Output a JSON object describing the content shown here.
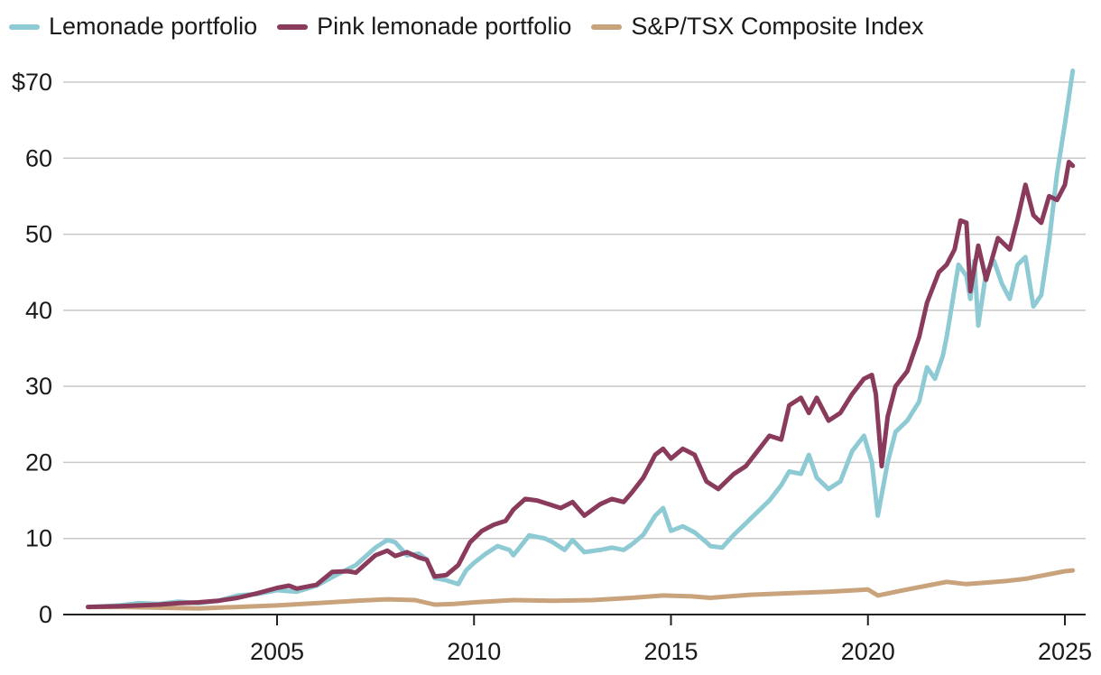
{
  "chart_data": {
    "type": "line",
    "title": "",
    "xlabel": "",
    "ylabel": "",
    "x_ticks": [
      "2005",
      "2010",
      "2015",
      "2020",
      "2025"
    ],
    "x_tick_values": [
      2005,
      2010,
      2015,
      2020,
      2025
    ],
    "y_ticks": [
      "0",
      "10",
      "20",
      "30",
      "40",
      "50",
      "60",
      "$70"
    ],
    "y_tick_values": [
      0,
      10,
      20,
      30,
      40,
      50,
      60,
      70
    ],
    "xlim": [
      2000,
      2025.6
    ],
    "ylim": [
      0,
      72
    ],
    "grid": true,
    "legend_position": "top-left",
    "series": [
      {
        "name": "Lemonade portfolio",
        "color": "#8ecad3",
        "points": [
          [
            2000.2,
            1.0
          ],
          [
            2001.0,
            1.2
          ],
          [
            2001.5,
            1.5
          ],
          [
            2002.0,
            1.4
          ],
          [
            2002.5,
            1.7
          ],
          [
            2003.0,
            1.5
          ],
          [
            2003.5,
            1.8
          ],
          [
            2004.0,
            2.5
          ],
          [
            2004.5,
            2.7
          ],
          [
            2005.0,
            3.2
          ],
          [
            2005.5,
            3.0
          ],
          [
            2006.0,
            3.8
          ],
          [
            2006.5,
            5.2
          ],
          [
            2007.0,
            6.5
          ],
          [
            2007.5,
            8.8
          ],
          [
            2007.8,
            9.8
          ],
          [
            2008.0,
            9.5
          ],
          [
            2008.3,
            7.8
          ],
          [
            2008.6,
            8.0
          ],
          [
            2008.8,
            7.2
          ],
          [
            2009.0,
            4.8
          ],
          [
            2009.3,
            4.5
          ],
          [
            2009.6,
            4.0
          ],
          [
            2009.8,
            5.8
          ],
          [
            2010.0,
            6.8
          ],
          [
            2010.3,
            8.0
          ],
          [
            2010.6,
            9.0
          ],
          [
            2010.9,
            8.5
          ],
          [
            2011.0,
            7.8
          ],
          [
            2011.4,
            10.4
          ],
          [
            2011.8,
            10.0
          ],
          [
            2012.0,
            9.5
          ],
          [
            2012.3,
            8.5
          ],
          [
            2012.5,
            9.8
          ],
          [
            2012.8,
            8.2
          ],
          [
            2013.2,
            8.5
          ],
          [
            2013.5,
            8.8
          ],
          [
            2013.8,
            8.5
          ],
          [
            2014.0,
            9.2
          ],
          [
            2014.3,
            10.5
          ],
          [
            2014.6,
            13.0
          ],
          [
            2014.8,
            14.0
          ],
          [
            2015.0,
            11.0
          ],
          [
            2015.3,
            11.6
          ],
          [
            2015.6,
            10.8
          ],
          [
            2015.9,
            9.5
          ],
          [
            2016.0,
            9.0
          ],
          [
            2016.3,
            8.8
          ],
          [
            2016.6,
            10.5
          ],
          [
            2016.9,
            12.0
          ],
          [
            2017.2,
            13.5
          ],
          [
            2017.5,
            15.0
          ],
          [
            2017.8,
            17.0
          ],
          [
            2018.0,
            18.8
          ],
          [
            2018.3,
            18.5
          ],
          [
            2018.5,
            21.0
          ],
          [
            2018.7,
            18.0
          ],
          [
            2019.0,
            16.5
          ],
          [
            2019.3,
            17.5
          ],
          [
            2019.6,
            21.5
          ],
          [
            2019.9,
            23.5
          ],
          [
            2020.1,
            20.0
          ],
          [
            2020.25,
            13.0
          ],
          [
            2020.5,
            20.0
          ],
          [
            2020.7,
            24.0
          ],
          [
            2021.0,
            25.5
          ],
          [
            2021.3,
            28.0
          ],
          [
            2021.5,
            32.5
          ],
          [
            2021.7,
            31.0
          ],
          [
            2021.9,
            34.0
          ],
          [
            2022.0,
            36.5
          ],
          [
            2022.3,
            46.0
          ],
          [
            2022.5,
            44.5
          ],
          [
            2022.6,
            41.5
          ],
          [
            2022.7,
            46.5
          ],
          [
            2022.8,
            38.0
          ],
          [
            2023.0,
            45.0
          ],
          [
            2023.2,
            46.5
          ],
          [
            2023.4,
            43.5
          ],
          [
            2023.6,
            41.5
          ],
          [
            2023.8,
            46.0
          ],
          [
            2024.0,
            47.0
          ],
          [
            2024.2,
            40.5
          ],
          [
            2024.4,
            42.0
          ],
          [
            2024.6,
            49.0
          ],
          [
            2024.8,
            58.0
          ],
          [
            2025.0,
            64.5
          ],
          [
            2025.1,
            68.0
          ],
          [
            2025.2,
            71.5
          ]
        ]
      },
      {
        "name": "Pink lemonade portfolio",
        "color": "#8a3b5c",
        "points": [
          [
            2000.2,
            1.0
          ],
          [
            2001.0,
            1.1
          ],
          [
            2001.5,
            1.2
          ],
          [
            2002.0,
            1.3
          ],
          [
            2002.5,
            1.5
          ],
          [
            2003.0,
            1.6
          ],
          [
            2003.5,
            1.8
          ],
          [
            2004.0,
            2.2
          ],
          [
            2004.5,
            2.8
          ],
          [
            2005.0,
            3.5
          ],
          [
            2005.3,
            3.8
          ],
          [
            2005.5,
            3.4
          ],
          [
            2006.0,
            3.9
          ],
          [
            2006.4,
            5.6
          ],
          [
            2006.8,
            5.7
          ],
          [
            2007.0,
            5.5
          ],
          [
            2007.5,
            7.8
          ],
          [
            2007.8,
            8.4
          ],
          [
            2008.0,
            7.7
          ],
          [
            2008.3,
            8.2
          ],
          [
            2008.6,
            7.5
          ],
          [
            2008.8,
            7.2
          ],
          [
            2009.0,
            5.0
          ],
          [
            2009.3,
            5.2
          ],
          [
            2009.6,
            6.5
          ],
          [
            2009.9,
            9.5
          ],
          [
            2010.2,
            11.0
          ],
          [
            2010.5,
            11.8
          ],
          [
            2010.8,
            12.3
          ],
          [
            2011.0,
            13.8
          ],
          [
            2011.3,
            15.2
          ],
          [
            2011.6,
            15.0
          ],
          [
            2011.9,
            14.5
          ],
          [
            2012.2,
            14.0
          ],
          [
            2012.5,
            14.8
          ],
          [
            2012.8,
            13.0
          ],
          [
            2013.2,
            14.5
          ],
          [
            2013.5,
            15.2
          ],
          [
            2013.8,
            14.8
          ],
          [
            2014.0,
            16.0
          ],
          [
            2014.3,
            18.0
          ],
          [
            2014.6,
            21.0
          ],
          [
            2014.8,
            21.8
          ],
          [
            2015.0,
            20.5
          ],
          [
            2015.3,
            21.8
          ],
          [
            2015.6,
            21.0
          ],
          [
            2015.9,
            17.5
          ],
          [
            2016.2,
            16.5
          ],
          [
            2016.6,
            18.5
          ],
          [
            2016.9,
            19.5
          ],
          [
            2017.2,
            21.5
          ],
          [
            2017.5,
            23.5
          ],
          [
            2017.8,
            23.0
          ],
          [
            2018.0,
            27.5
          ],
          [
            2018.3,
            28.5
          ],
          [
            2018.5,
            26.5
          ],
          [
            2018.7,
            28.5
          ],
          [
            2019.0,
            25.5
          ],
          [
            2019.3,
            26.5
          ],
          [
            2019.6,
            29.0
          ],
          [
            2019.9,
            31.0
          ],
          [
            2020.1,
            31.5
          ],
          [
            2020.2,
            29.0
          ],
          [
            2020.35,
            19.5
          ],
          [
            2020.5,
            26.0
          ],
          [
            2020.7,
            30.0
          ],
          [
            2021.0,
            32.0
          ],
          [
            2021.3,
            36.5
          ],
          [
            2021.5,
            41.0
          ],
          [
            2021.8,
            45.0
          ],
          [
            2022.0,
            46.0
          ],
          [
            2022.2,
            48.0
          ],
          [
            2022.35,
            51.8
          ],
          [
            2022.5,
            51.5
          ],
          [
            2022.6,
            42.5
          ],
          [
            2022.8,
            48.5
          ],
          [
            2023.0,
            44.0
          ],
          [
            2023.3,
            49.5
          ],
          [
            2023.6,
            48.0
          ],
          [
            2023.8,
            52.0
          ],
          [
            2024.0,
            56.5
          ],
          [
            2024.2,
            52.5
          ],
          [
            2024.4,
            51.5
          ],
          [
            2024.6,
            55.0
          ],
          [
            2024.8,
            54.5
          ],
          [
            2025.0,
            56.5
          ],
          [
            2025.1,
            59.5
          ],
          [
            2025.2,
            59.0
          ]
        ]
      },
      {
        "name": "S&P/TSX Composite Index",
        "color": "#c9a37c",
        "points": [
          [
            2000.2,
            1.0
          ],
          [
            2001.0,
            1.0
          ],
          [
            2002.0,
            0.9
          ],
          [
            2003.0,
            0.8
          ],
          [
            2004.0,
            1.0
          ],
          [
            2005.0,
            1.2
          ],
          [
            2006.0,
            1.5
          ],
          [
            2007.0,
            1.8
          ],
          [
            2007.8,
            2.0
          ],
          [
            2008.5,
            1.9
          ],
          [
            2009.0,
            1.3
          ],
          [
            2009.5,
            1.4
          ],
          [
            2010.0,
            1.6
          ],
          [
            2011.0,
            1.9
          ],
          [
            2012.0,
            1.8
          ],
          [
            2013.0,
            1.9
          ],
          [
            2014.0,
            2.2
          ],
          [
            2014.8,
            2.5
          ],
          [
            2015.5,
            2.4
          ],
          [
            2016.0,
            2.2
          ],
          [
            2017.0,
            2.6
          ],
          [
            2018.0,
            2.8
          ],
          [
            2019.0,
            3.0
          ],
          [
            2020.0,
            3.3
          ],
          [
            2020.25,
            2.5
          ],
          [
            2020.8,
            3.1
          ],
          [
            2021.5,
            3.8
          ],
          [
            2022.0,
            4.3
          ],
          [
            2022.5,
            4.0
          ],
          [
            2023.0,
            4.2
          ],
          [
            2023.5,
            4.4
          ],
          [
            2024.0,
            4.7
          ],
          [
            2024.5,
            5.2
          ],
          [
            2025.0,
            5.7
          ],
          [
            2025.2,
            5.8
          ]
        ]
      }
    ]
  }
}
